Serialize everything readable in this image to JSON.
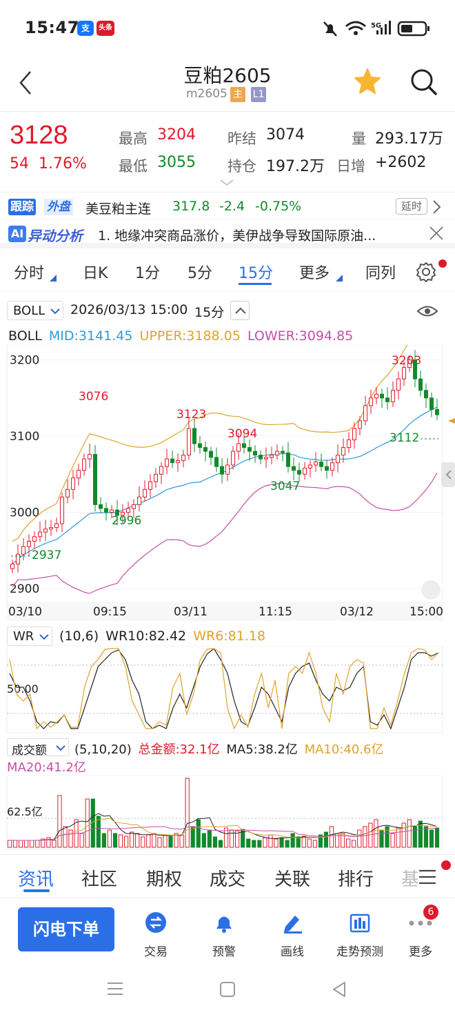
{
  "status_bar": {
    "time": "15:47",
    "app1": "支",
    "app2": "头条",
    "signal": "5G"
  },
  "header": {
    "title": "豆粕2605",
    "code": "m2605",
    "tag_main": "主",
    "tag_level": "L1"
  },
  "quote": {
    "price": "3128",
    "change": "54",
    "change_pct": "1.76%",
    "high_label": "最高",
    "high": "3204",
    "low_label": "最低",
    "low": "3055",
    "prev_settle_label": "昨结",
    "prev_settle": "3074",
    "position_label": "持仓",
    "position": "197.2万",
    "volume_label": "量",
    "volume": "293.17万",
    "daily_inc_label": "日增",
    "daily_inc": "+2602"
  },
  "tracking": {
    "badge1": "跟踪",
    "badge2": "外盘",
    "name": "美豆粕主连",
    "price": "317.8",
    "change": "-2.4",
    "change_pct": "-0.75%",
    "delay": "延时"
  },
  "ai_analysis": {
    "badge_ai": "AI",
    "label": "异动分析",
    "text": "1. 地缘冲突商品涨价，美伊战争导致国际原油..."
  },
  "periods": [
    "分时",
    "日K",
    "1分",
    "5分",
    "15分",
    "更多",
    "同列"
  ],
  "active_period": "15分",
  "main_chart": {
    "indicator": "BOLL",
    "date": "2026/03/13 15:00",
    "period": "15分",
    "legend_name": "BOLL",
    "mid": "MID:3141.45",
    "upper": "UPPER:3188.05",
    "lower": "LOWER:3094.85",
    "y_ticks": [
      "3200",
      "3100",
      "3000",
      "2900"
    ],
    "x_ticks": [
      "03/10",
      "09:15",
      "03/11",
      "11:15",
      "03/12",
      "15:00"
    ],
    "annotations": [
      "3076",
      "2996",
      "3123",
      "3094",
      "3047",
      "3203",
      "3112",
      "2937"
    ],
    "colors": {
      "up": "#e0192b",
      "down": "#118a2c",
      "mid": "#2f9ad6",
      "upper": "#e0a32c",
      "lower": "#c54fa7"
    }
  },
  "wr": {
    "name": "WR",
    "params": "(10,6)",
    "wr10": "WR10:82.42",
    "wr6": "WR6:81.18",
    "level": "50.00"
  },
  "volume_panel": {
    "name": "成交额",
    "params": "(5,10,20)",
    "total": "总金额:32.1亿",
    "ma5": "MA5:38.2亿",
    "ma10": "MA10:40.6亿",
    "ma20": "MA20:41.2亿",
    "level": "62.5亿"
  },
  "bottom_tabs": [
    "资讯",
    "社区",
    "期权",
    "成交",
    "关联",
    "排行",
    "基"
  ],
  "active_tab": "资讯",
  "actions": {
    "primary": "闪电下单",
    "trade": "交易",
    "alert": "预警",
    "draw": "画线",
    "predict": "走势预测",
    "more": "更多",
    "more_badge": "6"
  },
  "chart_data": {
    "type": "candlestick",
    "series": [
      {
        "name": "BOLL",
        "mid": 3141.45,
        "upper": 3188.05,
        "lower": 3094.85
      }
    ],
    "x_ticks": [
      "03/10",
      "09:15",
      "03/11",
      "11:15",
      "03/12",
      "15:00"
    ],
    "ylim": [
      2880,
      3215
    ]
  }
}
